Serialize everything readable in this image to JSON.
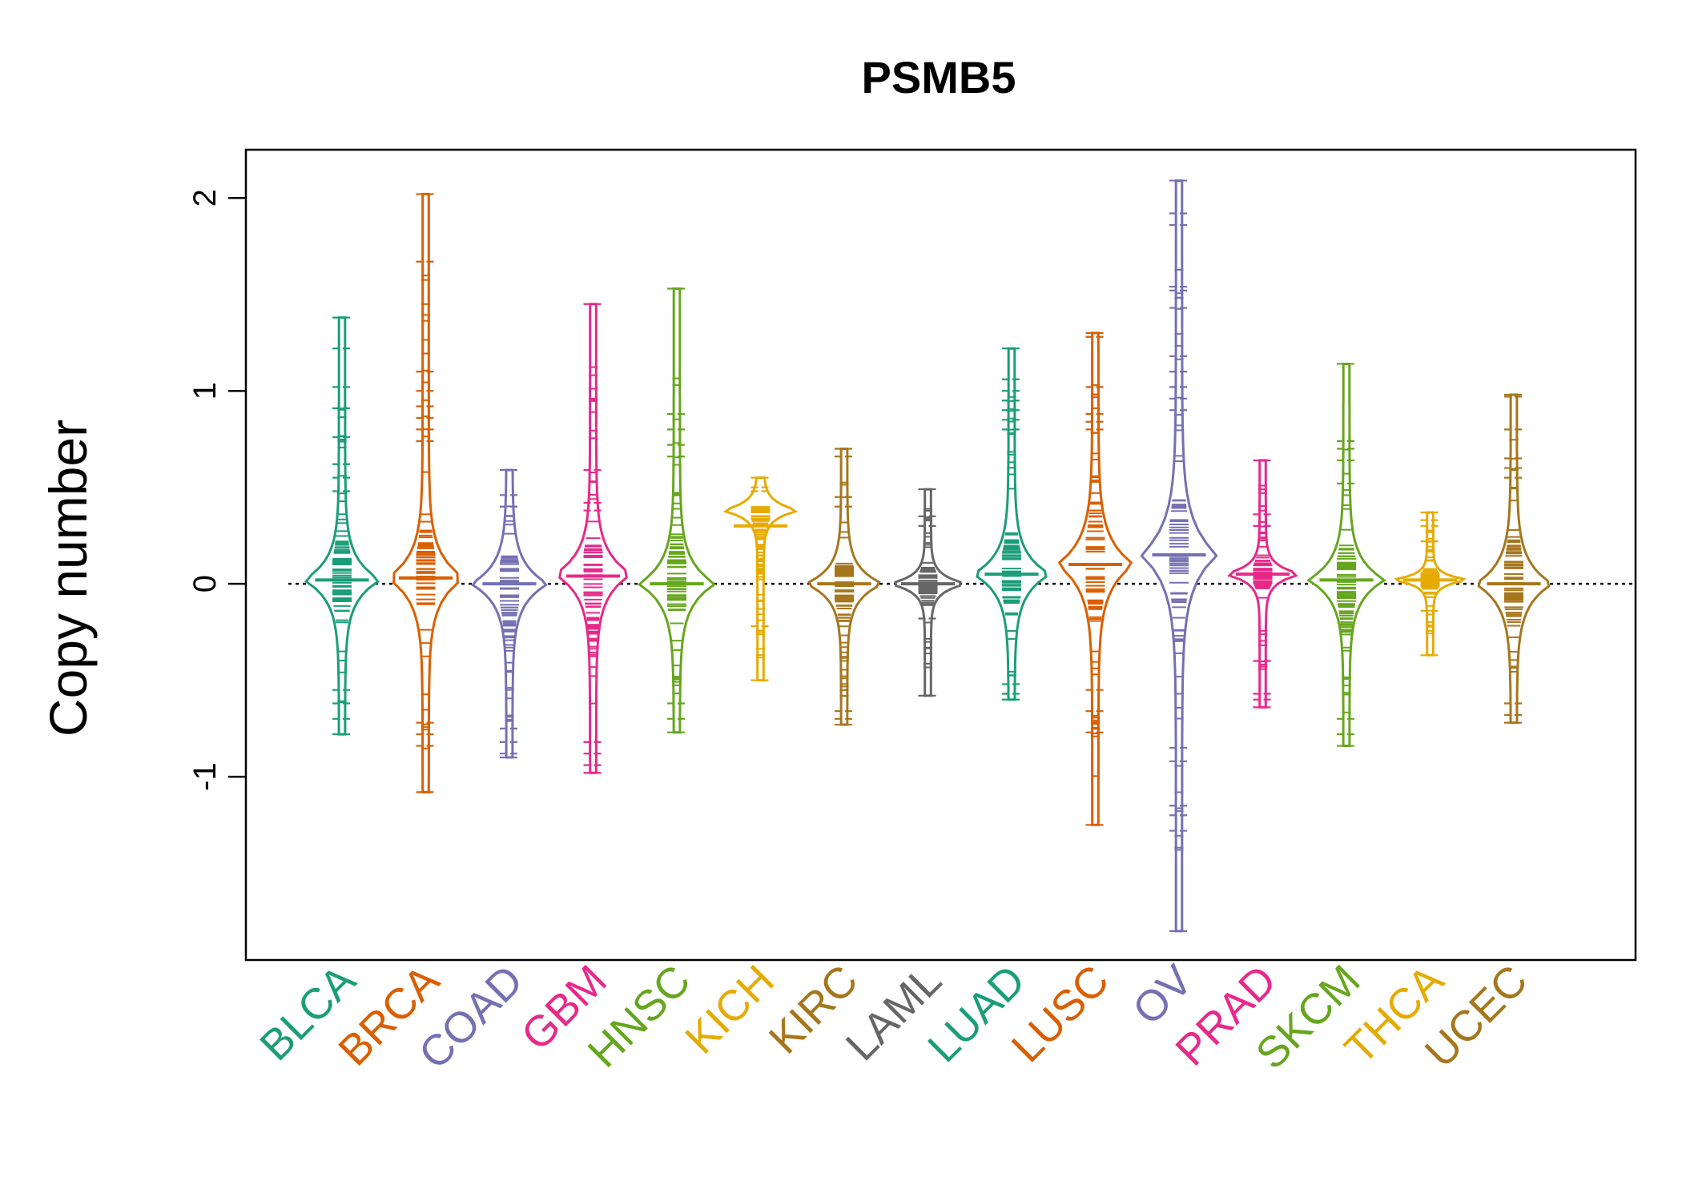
{
  "chart_data": {
    "type": "beanplot",
    "title": "PSMB5",
    "xlabel": "",
    "ylabel": "Copy number",
    "ylim": [
      -1.95,
      2.25
    ],
    "yticks": [
      -1,
      0,
      1,
      2
    ],
    "ytick_labels": [
      "-1",
      "0",
      "1",
      "2"
    ],
    "reference_line": 0,
    "grid": false,
    "legend": "none",
    "categories": [
      "BLCA",
      "BRCA",
      "COAD",
      "GBM",
      "HNSC",
      "KICH",
      "KIRC",
      "LAML",
      "LUAD",
      "LUSC",
      "OV",
      "PRAD",
      "SKCM",
      "THCA",
      "UCEC"
    ],
    "colors": [
      "#1B9E77",
      "#D95F02",
      "#7570B3",
      "#E7298A",
      "#66A61E",
      "#E6AB02",
      "#A6761D",
      "#666666",
      "#1B9E77",
      "#D95F02",
      "#7570B3",
      "#E7298A",
      "#66A61E",
      "#E6AB02",
      "#A6761D"
    ],
    "series": [
      {
        "name": "BLCA",
        "mode": 0.02,
        "spread": 0.28,
        "min": -0.78,
        "max": 1.38,
        "q1": -0.12,
        "median": 0.02,
        "q3": 0.22,
        "outliers": [
          1.38,
          1.22,
          1.02,
          0.91,
          0.76,
          0.62,
          0.55,
          0.48,
          -0.55,
          -0.62,
          -0.7,
          -0.78
        ]
      },
      {
        "name": "BRCA",
        "mode": 0.03,
        "spread": 0.32,
        "min": -1.08,
        "max": 2.02,
        "q1": -0.15,
        "median": 0.03,
        "q3": 0.28,
        "outliers": [
          2.02,
          1.67,
          1.1,
          1.0,
          0.92,
          0.86,
          0.8,
          0.74,
          -0.72,
          -0.78,
          -0.84,
          -1.08
        ]
      },
      {
        "name": "COAD",
        "mode": 0.0,
        "spread": 0.28,
        "min": -0.9,
        "max": 0.59,
        "q1": -0.25,
        "median": 0.0,
        "q3": 0.15,
        "outliers": [
          0.59,
          0.46,
          0.4,
          -0.75,
          -0.82,
          -0.88,
          -0.9
        ]
      },
      {
        "name": "GBM",
        "mode": 0.05,
        "spread": 0.3,
        "min": -0.98,
        "max": 1.45,
        "q1": -0.4,
        "median": 0.04,
        "q3": 0.2,
        "outliers": [
          1.45,
          0.59,
          0.42,
          0.38,
          -0.82,
          -0.88,
          -0.94,
          -0.98
        ]
      },
      {
        "name": "HNSC",
        "mode": 0.0,
        "spread": 0.3,
        "min": -0.77,
        "max": 1.53,
        "q1": -0.15,
        "median": 0.0,
        "q3": 0.25,
        "outliers": [
          1.53,
          0.88,
          0.8,
          0.72,
          0.66,
          -0.62,
          -0.7,
          -0.77
        ]
      },
      {
        "name": "KICH",
        "mode": 0.38,
        "spread": 0.12,
        "min": -0.5,
        "max": 0.55,
        "q1": 0.05,
        "median": 0.3,
        "q3": 0.4,
        "outliers": [
          0.55,
          0.5,
          0.48,
          -0.22,
          -0.5
        ]
      },
      {
        "name": "KIRC",
        "mode": 0.0,
        "spread": 0.22,
        "min": -0.73,
        "max": 0.7,
        "q1": -0.2,
        "median": 0.0,
        "q3": 0.1,
        "outliers": [
          0.7,
          0.66,
          0.45,
          0.4,
          -0.66,
          -0.7,
          -0.73
        ]
      },
      {
        "name": "LAML",
        "mode": 0.0,
        "spread": 0.12,
        "min": -0.58,
        "max": 0.49,
        "q1": -0.05,
        "median": 0.0,
        "q3": 0.08,
        "outliers": [
          0.49,
          0.35,
          0.3,
          -0.18,
          -0.58
        ]
      },
      {
        "name": "LUAD",
        "mode": 0.05,
        "spread": 0.28,
        "min": -0.6,
        "max": 1.22,
        "q1": -0.1,
        "median": 0.05,
        "q3": 0.3,
        "outliers": [
          1.22,
          1.06,
          1.0,
          0.95,
          0.9,
          0.85,
          0.8,
          -0.52,
          -0.57,
          -0.6
        ]
      },
      {
        "name": "LUSC",
        "mode": 0.1,
        "spread": 0.35,
        "min": -1.25,
        "max": 1.3,
        "q1": -0.2,
        "median": 0.1,
        "q3": 0.4,
        "outliers": [
          1.3,
          1.28,
          1.02,
          0.88,
          0.84,
          0.8,
          -0.55,
          -0.66,
          -0.77,
          -1.25
        ]
      },
      {
        "name": "OV",
        "mode": 0.15,
        "spread": 0.42,
        "min": -1.8,
        "max": 2.09,
        "q1": -0.3,
        "median": 0.15,
        "q3": 0.45,
        "outliers": [
          2.09,
          1.92,
          1.86,
          1.54,
          1.52,
          1.43,
          1.18,
          1.1,
          1.02,
          0.96,
          0.9,
          -0.85,
          -0.92,
          -1.15,
          -1.2,
          -1.28,
          -1.8
        ]
      },
      {
        "name": "PRAD",
        "mode": 0.05,
        "spread": 0.12,
        "min": -0.64,
        "max": 0.64,
        "q1": -0.02,
        "median": 0.05,
        "q3": 0.12,
        "outliers": [
          0.64,
          0.36,
          0.3,
          -0.4,
          -0.57,
          -0.6,
          -0.64
        ]
      },
      {
        "name": "SKCM",
        "mode": 0.02,
        "spread": 0.28,
        "min": -0.84,
        "max": 1.14,
        "q1": -0.25,
        "median": 0.02,
        "q3": 0.2,
        "outliers": [
          1.14,
          0.74,
          0.7,
          0.64,
          0.52,
          -0.7,
          -0.78,
          -0.84
        ]
      },
      {
        "name": "THCA",
        "mode": 0.02,
        "spread": 0.08,
        "min": -0.37,
        "max": 0.37,
        "q1": -0.03,
        "median": 0.02,
        "q3": 0.08,
        "outliers": [
          0.37,
          0.33,
          0.3,
          0.22,
          -0.14,
          -0.37
        ]
      },
      {
        "name": "UCEC",
        "mode": 0.0,
        "spread": 0.3,
        "min": -0.72,
        "max": 0.98,
        "q1": -0.2,
        "median": 0.0,
        "q3": 0.25,
        "outliers": [
          0.98,
          0.97,
          0.8,
          0.65,
          0.6,
          0.55,
          -0.62,
          -0.68,
          -0.72
        ]
      }
    ]
  }
}
